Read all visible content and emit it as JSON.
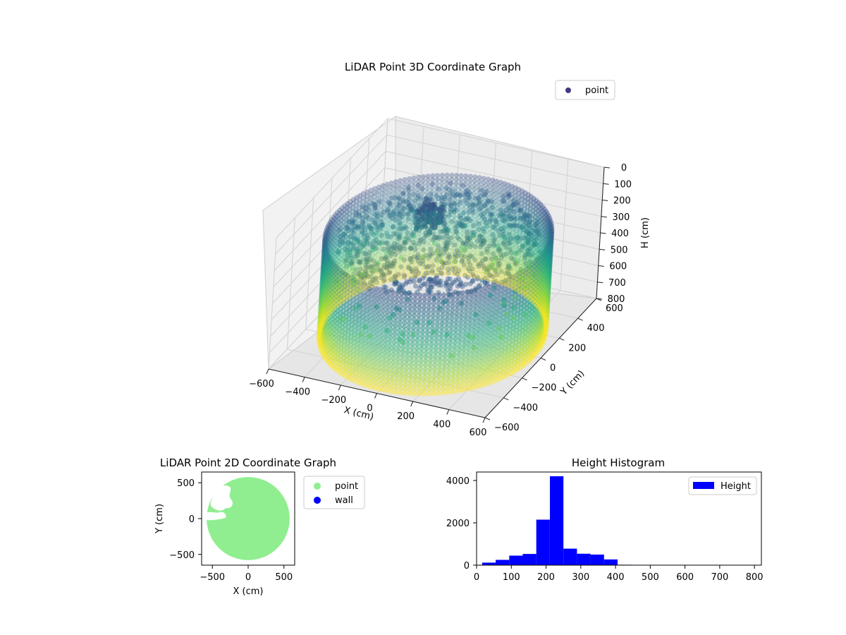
{
  "figure": {
    "background": "#ffffff"
  },
  "chart_data": [
    {
      "type": "scatter3d",
      "title": "LiDAR Point 3D Coordinate Graph",
      "xlabel": "X (cm)",
      "ylabel": "Y (cm)",
      "zlabel": "H (cm)",
      "xlim": [
        -600,
        600
      ],
      "ylim": [
        -600,
        600
      ],
      "zlim": [
        800,
        0
      ],
      "xticks": [
        "−600",
        "−400",
        "−200",
        "0",
        "200",
        "400",
        "600"
      ],
      "yticks": [
        "−600",
        "−400",
        "−200",
        "0",
        "200",
        "400",
        "600"
      ],
      "zticks": [
        "0",
        "100",
        "200",
        "300",
        "400",
        "500",
        "600",
        "700",
        "800"
      ],
      "colormap": "viridis",
      "legend": {
        "position": "top-right",
        "entries": [
          {
            "label": "point",
            "color": "#443983"
          }
        ]
      },
      "structure": {
        "wall_radius": 560,
        "wall_height_range": [
          200,
          800
        ],
        "floor_height": 230,
        "center_object": {
          "x": -100,
          "y": 100,
          "height_range": [
            100,
            230
          ]
        }
      }
    },
    {
      "type": "scatter",
      "title": "LiDAR Point 2D Coordinate Graph",
      "xlabel": "X (cm)",
      "ylabel": "Y (cm)",
      "xlim": [
        -650,
        650
      ],
      "ylim": [
        -650,
        650
      ],
      "xticks": [
        "−500",
        "0",
        "500"
      ],
      "yticks": [
        "−500",
        "0",
        "500"
      ],
      "legend": {
        "position": "outside-right",
        "entries": [
          {
            "label": "point",
            "color": "#90ee90"
          },
          {
            "label": "wall",
            "color": "#0000ff"
          }
        ]
      },
      "point_disk": {
        "center": [
          0,
          0
        ],
        "radius": 580,
        "color": "#90ee90"
      }
    },
    {
      "type": "bar",
      "title": "Height Histogram",
      "xlim": [
        0,
        820
      ],
      "ylim": [
        0,
        4400
      ],
      "xticks": [
        "0",
        "100",
        "200",
        "300",
        "400",
        "500",
        "600",
        "700",
        "800"
      ],
      "yticks": [
        "0",
        "2000",
        "4000"
      ],
      "bar_color": "#0000ff",
      "legend": {
        "position": "top-right",
        "entries": [
          {
            "label": "Height",
            "color": "#0000ff"
          }
        ]
      },
      "bin_edges": [
        16,
        55,
        94,
        133,
        172,
        211,
        250,
        289,
        328,
        367,
        406,
        445,
        484,
        523,
        562,
        601,
        640,
        679,
        718,
        757,
        796
      ],
      "counts": [
        120,
        250,
        450,
        530,
        2150,
        4200,
        780,
        540,
        500,
        270,
        20,
        10,
        10,
        5,
        5,
        5,
        5,
        5,
        5,
        5
      ]
    }
  ]
}
